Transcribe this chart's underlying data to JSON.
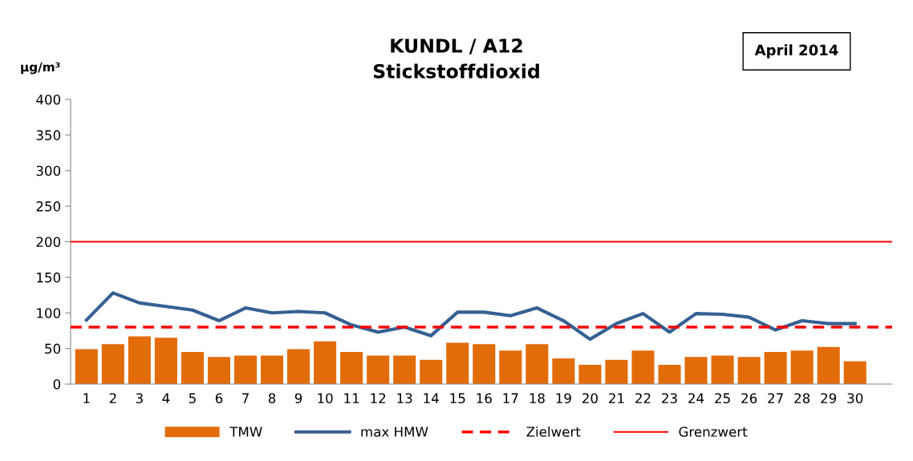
{
  "chart_data": {
    "type": "bar",
    "title": "KUNDL / A12\nStickstoffdioxid",
    "ylabel": "µg/m³",
    "annotations": [
      "April 2014"
    ],
    "categories": [
      "1",
      "2",
      "3",
      "4",
      "5",
      "6",
      "7",
      "8",
      "9",
      "10",
      "11",
      "12",
      "13",
      "14",
      "15",
      "16",
      "17",
      "18",
      "19",
      "20",
      "21",
      "22",
      "23",
      "24",
      "25",
      "26",
      "27",
      "28",
      "29",
      "30",
      null
    ],
    "series": [
      {
        "name": "TMW",
        "color": "#e36c0a",
        "values": [
          49,
          56,
          67,
          65,
          45,
          38,
          40,
          40,
          49,
          60,
          45,
          40,
          40,
          34,
          58,
          56,
          47,
          56,
          36,
          27,
          34,
          47,
          27,
          38,
          40,
          38,
          45,
          47,
          52,
          32,
          null
        ]
      },
      {
        "name": "max HMW",
        "type": "line",
        "color": "#366092",
        "values": [
          90,
          128,
          114,
          109,
          104,
          89,
          107,
          100,
          102,
          100,
          83,
          73,
          80,
          68,
          101,
          101,
          96,
          107,
          89,
          63,
          85,
          99,
          73,
          99,
          98,
          94,
          76,
          89,
          85,
          85,
          null
        ]
      }
    ],
    "ref_lines": [
      {
        "axis": "y",
        "value": 80,
        "label": "Zielwert",
        "color": "#ff0000",
        "line_style": "dashed"
      },
      {
        "axis": "y",
        "value": 200,
        "label": "Grenzwert",
        "color": "#ff0000",
        "line_style": "solid"
      }
    ],
    "ylim": [
      0,
      400
    ],
    "yticks": [
      0,
      50,
      100,
      150,
      200,
      250,
      300,
      350,
      400
    ],
    "grid": false,
    "legend": "bottom"
  }
}
